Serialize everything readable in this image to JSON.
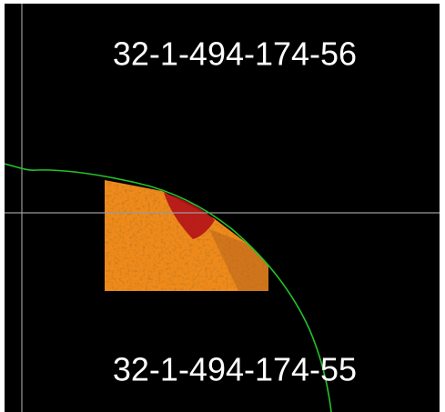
{
  "tiles": [
    {
      "label": "32-1-494-174-56"
    },
    {
      "label": "32-1-494-174-55"
    }
  ]
}
